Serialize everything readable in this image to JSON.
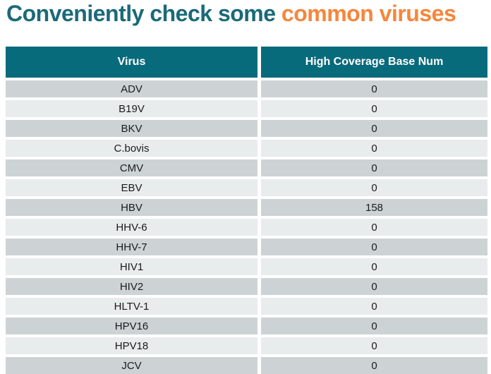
{
  "title": {
    "part1": "Conveniently check some ",
    "part2": "common viruses"
  },
  "colors": {
    "title_teal": "#1A6A79",
    "title_orange": "#F6863B",
    "header_bg": "#086B7C",
    "row_dark": "#CDD3D5",
    "row_light": "#E9ECEC",
    "cell_text": "#1B1B1B"
  },
  "table": {
    "columns": [
      "Virus",
      "High Coverage Base Num"
    ],
    "rows": [
      {
        "virus": "ADV",
        "value": "0"
      },
      {
        "virus": "B19V",
        "value": "0"
      },
      {
        "virus": "BKV",
        "value": "0"
      },
      {
        "virus": "C.bovis",
        "value": "0"
      },
      {
        "virus": "CMV",
        "value": "0"
      },
      {
        "virus": "EBV",
        "value": "0"
      },
      {
        "virus": "HBV",
        "value": "158"
      },
      {
        "virus": "HHV-6",
        "value": "0"
      },
      {
        "virus": "HHV-7",
        "value": "0"
      },
      {
        "virus": "HIV1",
        "value": "0"
      },
      {
        "virus": "HIV2",
        "value": "0"
      },
      {
        "virus": "HLTV-1",
        "value": "0"
      },
      {
        "virus": "HPV16",
        "value": "0"
      },
      {
        "virus": "HPV18",
        "value": "0"
      },
      {
        "virus": "JCV",
        "value": "0"
      }
    ]
  }
}
